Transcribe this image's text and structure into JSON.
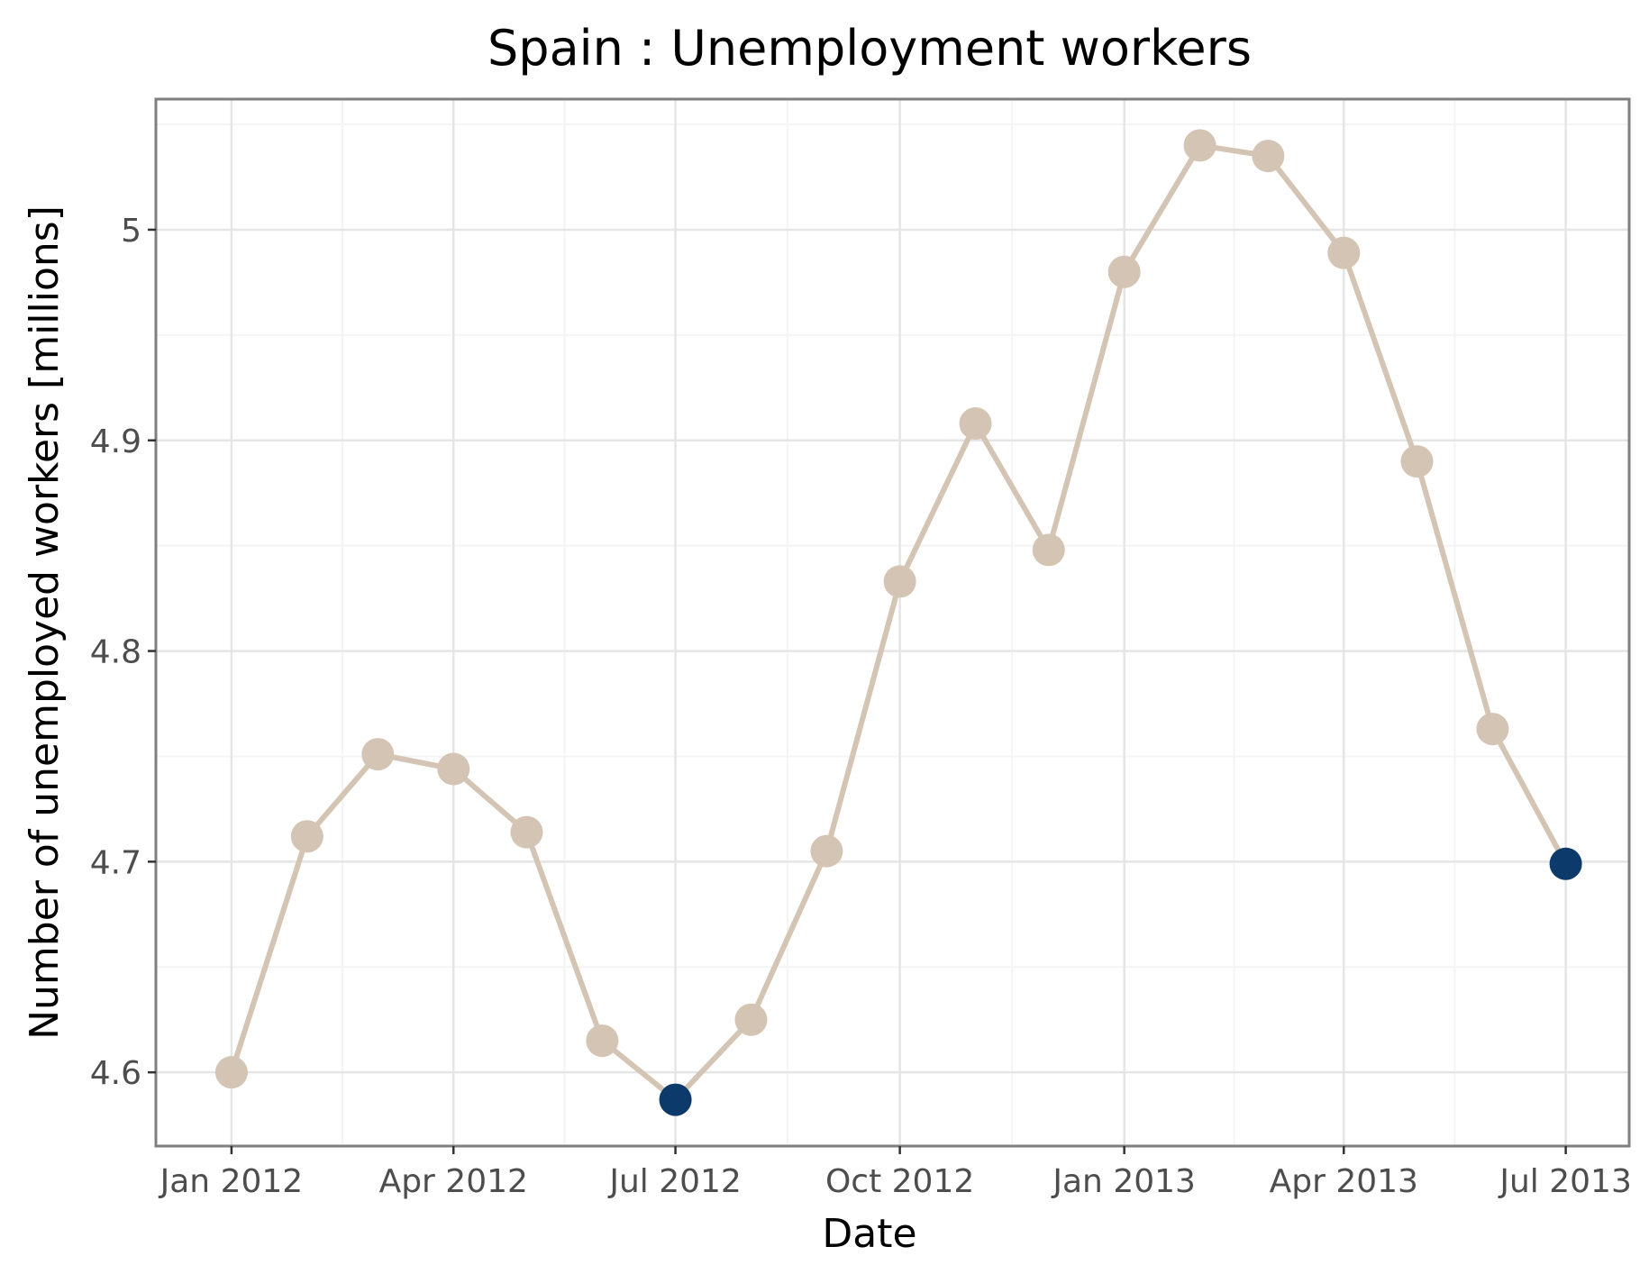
{
  "chart_data": {
    "type": "line",
    "title": "Spain : Unemployment workers",
    "xlabel": "Date",
    "ylabel": "Number of unemployed workers [millions]",
    "x_ticks": [
      "Jan 2012",
      "Apr 2012",
      "Jul 2012",
      "Oct 2012",
      "Jan 2013",
      "Apr 2013",
      "Jul 2013"
    ],
    "y_ticks": [
      "4.6",
      "4.7",
      "4.8",
      "4.9",
      "5"
    ],
    "xlim": [
      "2011-12-01",
      "2013-07-27"
    ],
    "ylim": [
      4.565,
      5.062
    ],
    "grid": true,
    "colors": {
      "line": "#d4c4b4",
      "point": "#d4c4b4",
      "highlight": "#0b3a6b",
      "frame": "#7f7f7f",
      "grid_major": "#e5e5e5",
      "grid_minor": "#f4f4f4"
    },
    "series": [
      {
        "points": [
          {
            "x": "2012-01-01",
            "y": 4.6
          },
          {
            "x": "2012-02-01",
            "y": 4.712
          },
          {
            "x": "2012-03-01",
            "y": 4.751
          },
          {
            "x": "2012-04-01",
            "y": 4.744
          },
          {
            "x": "2012-05-01",
            "y": 4.714
          },
          {
            "x": "2012-06-01",
            "y": 4.615
          },
          {
            "x": "2012-07-01",
            "y": 4.587,
            "highlight": true
          },
          {
            "x": "2012-08-01",
            "y": 4.625
          },
          {
            "x": "2012-09-01",
            "y": 4.705
          },
          {
            "x": "2012-10-01",
            "y": 4.833
          },
          {
            "x": "2012-11-01",
            "y": 4.908
          },
          {
            "x": "2012-12-01",
            "y": 4.848
          },
          {
            "x": "2013-01-01",
            "y": 4.98
          },
          {
            "x": "2013-02-01",
            "y": 5.04
          },
          {
            "x": "2013-03-01",
            "y": 5.035
          },
          {
            "x": "2013-04-01",
            "y": 4.989
          },
          {
            "x": "2013-05-01",
            "y": 4.89
          },
          {
            "x": "2013-06-01",
            "y": 4.763
          },
          {
            "x": "2013-07-01",
            "y": 4.699,
            "highlight": true
          }
        ]
      }
    ]
  }
}
